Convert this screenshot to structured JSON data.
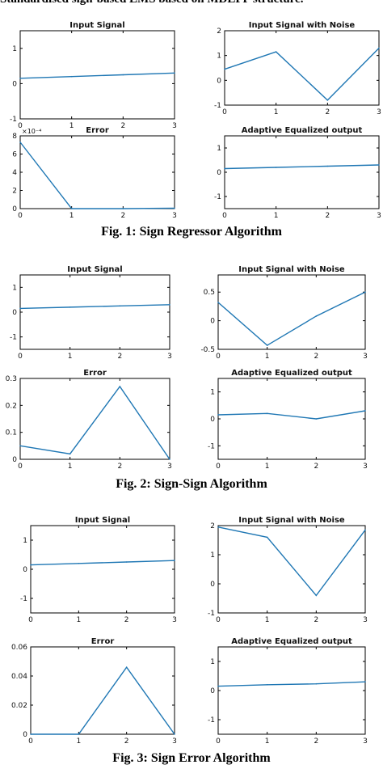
{
  "page": {
    "top_caption": "Standardised sign-based LMS based on MDLPF structure.",
    "fig1_caption": "Fig. 1: Sign Regressor Algorithm",
    "fig2_caption": "Fig. 2: Sign-Sign Algorithm",
    "fig3_caption": "Fig. 3: Sign Error Algorithm"
  },
  "style": {
    "line_color": "#1f77b4",
    "axis_color": "#000000",
    "background": "#ffffff"
  },
  "chart_data": [
    {
      "type": "line",
      "figure": 1,
      "title": "Input Signal",
      "x": [
        0,
        1,
        2,
        3
      ],
      "series": [
        {
          "values": [
            0.15,
            0.2,
            0.25,
            0.3
          ]
        }
      ],
      "xlim": [
        0,
        3
      ],
      "ylim": [
        -1,
        1.5
      ],
      "xticks": [
        "0",
        "1",
        "2",
        "3"
      ],
      "yticks": [
        "-1",
        "0",
        "1"
      ],
      "grid": false
    },
    {
      "type": "line",
      "figure": 1,
      "title": "Input Signal with Noise",
      "x": [
        0,
        1,
        2,
        3
      ],
      "series": [
        {
          "values": [
            0.45,
            1.15,
            -0.8,
            1.3
          ]
        }
      ],
      "xlim": [
        0,
        3
      ],
      "ylim": [
        -1,
        2
      ],
      "xticks": [
        "0",
        "1",
        "2",
        "3"
      ],
      "yticks": [
        "-1",
        "0",
        "1",
        "2"
      ],
      "grid": false
    },
    {
      "type": "line",
      "figure": 1,
      "title": "Error",
      "x": [
        0,
        1,
        2,
        3
      ],
      "series": [
        {
          "values": [
            7.3,
            0.0,
            0.0,
            0.05
          ]
        }
      ],
      "xlim": [
        0,
        3
      ],
      "ylim": [
        0,
        8
      ],
      "xticks": [
        "0",
        "1",
        "2",
        "3"
      ],
      "yticks": [
        "0",
        "2",
        "4",
        "6",
        "8"
      ],
      "y_exponent_label": "×10⁻⁴",
      "grid": false
    },
    {
      "type": "line",
      "figure": 1,
      "title": "Adaptive Equalized output",
      "x": [
        0,
        1,
        2,
        3
      ],
      "series": [
        {
          "values": [
            0.15,
            0.2,
            0.25,
            0.3
          ]
        }
      ],
      "xlim": [
        0,
        3
      ],
      "ylim": [
        -1.5,
        1.5
      ],
      "xticks": [
        "0",
        "1",
        "2",
        "3"
      ],
      "yticks": [
        "-1",
        "0",
        "1"
      ],
      "grid": false
    },
    {
      "type": "line",
      "figure": 2,
      "title": "Input Signal",
      "x": [
        0,
        1,
        2,
        3
      ],
      "series": [
        {
          "values": [
            0.15,
            0.2,
            0.25,
            0.3
          ]
        }
      ],
      "xlim": [
        0,
        3
      ],
      "ylim": [
        -1.5,
        1.5
      ],
      "xticks": [
        "0",
        "1",
        "2",
        "3"
      ],
      "yticks": [
        "-1",
        "0",
        "1"
      ],
      "grid": false
    },
    {
      "type": "line",
      "figure": 2,
      "title": "Input Signal with Noise",
      "x": [
        0,
        1,
        2,
        3
      ],
      "series": [
        {
          "values": [
            0.32,
            -0.43,
            0.08,
            0.5
          ]
        }
      ],
      "xlim": [
        0,
        3
      ],
      "ylim": [
        -0.5,
        0.8
      ],
      "xticks": [
        "0",
        "1",
        "2",
        "3"
      ],
      "yticks": [
        "-0.5",
        "0",
        "0.5"
      ],
      "grid": false
    },
    {
      "type": "line",
      "figure": 2,
      "title": "Error",
      "x": [
        0,
        1,
        2,
        3
      ],
      "series": [
        {
          "values": [
            0.05,
            0.02,
            0.27,
            0.0
          ]
        }
      ],
      "xlim": [
        0,
        3
      ],
      "ylim": [
        0,
        0.3
      ],
      "xticks": [
        "0",
        "1",
        "2",
        "3"
      ],
      "yticks": [
        "0",
        "0.1",
        "0.2",
        "0.3"
      ],
      "grid": false
    },
    {
      "type": "line",
      "figure": 2,
      "title": "Adaptive Equalized output",
      "x": [
        0,
        1,
        2,
        3
      ],
      "series": [
        {
          "values": [
            0.15,
            0.2,
            0.0,
            0.3
          ]
        }
      ],
      "xlim": [
        0,
        3
      ],
      "ylim": [
        -1.5,
        1.5
      ],
      "xticks": [
        "0",
        "1",
        "2",
        "3"
      ],
      "yticks": [
        "-1",
        "0",
        "1"
      ],
      "grid": false
    },
    {
      "type": "line",
      "figure": 3,
      "title": "Input Signal",
      "x": [
        0,
        1,
        2,
        3
      ],
      "series": [
        {
          "values": [
            0.15,
            0.2,
            0.25,
            0.3
          ]
        }
      ],
      "xlim": [
        0,
        3
      ],
      "ylim": [
        -1.5,
        1.5
      ],
      "xticks": [
        "0",
        "1",
        "2",
        "3"
      ],
      "yticks": [
        "-1",
        "0",
        "1"
      ],
      "grid": false
    },
    {
      "type": "line",
      "figure": 3,
      "title": "Input Signal with Noise",
      "x": [
        0,
        1,
        2,
        3
      ],
      "series": [
        {
          "values": [
            1.95,
            1.6,
            -0.4,
            1.85
          ]
        }
      ],
      "xlim": [
        0,
        3
      ],
      "ylim": [
        -1,
        2
      ],
      "xticks": [
        "0",
        "1",
        "2",
        "3"
      ],
      "yticks": [
        "-1",
        "0",
        "1",
        "2"
      ],
      "grid": false
    },
    {
      "type": "line",
      "figure": 3,
      "title": "Error",
      "x": [
        0,
        1,
        2,
        3
      ],
      "series": [
        {
          "values": [
            0.0,
            0.0,
            0.046,
            0.0
          ]
        }
      ],
      "xlim": [
        0,
        3
      ],
      "ylim": [
        0,
        0.06
      ],
      "xticks": [
        "0",
        "1",
        "2",
        "3"
      ],
      "yticks": [
        "0",
        "0.02",
        "0.04",
        "0.06"
      ],
      "grid": false
    },
    {
      "type": "line",
      "figure": 3,
      "title": "Adaptive Equalized output",
      "x": [
        0,
        1,
        2,
        3
      ],
      "series": [
        {
          "values": [
            0.15,
            0.2,
            0.23,
            0.3
          ]
        }
      ],
      "xlim": [
        0,
        3
      ],
      "ylim": [
        -1.5,
        1.5
      ],
      "xticks": [
        "0",
        "1",
        "2",
        "3"
      ],
      "yticks": [
        "-1",
        "0",
        "1"
      ],
      "grid": false
    }
  ]
}
